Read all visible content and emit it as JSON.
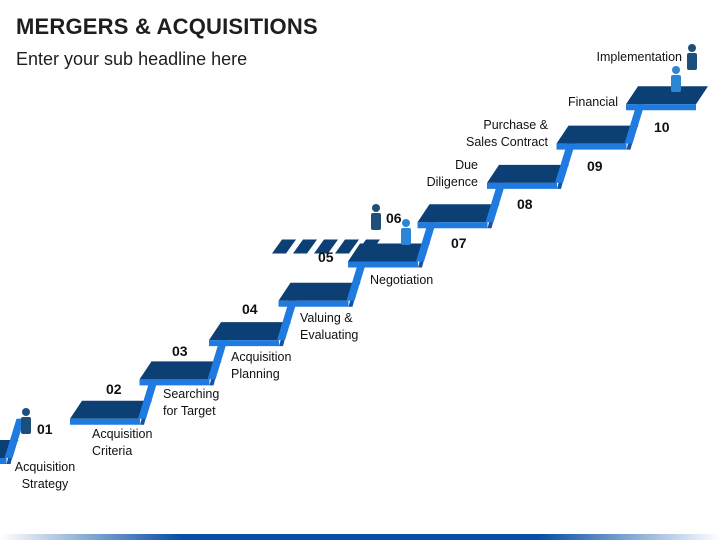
{
  "slide": {
    "title": "MERGERS & ACQUISITIONS",
    "subtitle": "Enter your sub headline here"
  },
  "colors": {
    "step_light": "#1f7be0",
    "step_dark": "#0c3f73",
    "step_riser": "#1552a3",
    "person": "#1e4f7c",
    "person_light": "#2b86d6",
    "footer": "#0a4ea8"
  },
  "steps": [
    {
      "number": "01",
      "label": "Acquisition\nStrategy"
    },
    {
      "number": "02",
      "label": "Acquisition\nCriteria"
    },
    {
      "number": "03",
      "label": "Searching\nfor Target"
    },
    {
      "number": "04",
      "label": "Acquisition\nPlanning"
    },
    {
      "number": "05",
      "label": "Valuing &\nEvaluating"
    },
    {
      "number": "06",
      "label": "Negotiation"
    },
    {
      "number": "07",
      "label": "Due\nDiligence"
    },
    {
      "number": "08",
      "label": "Purchase &\nSales Contract"
    },
    {
      "number": "09",
      "label": "Financial"
    },
    {
      "number": "10",
      "label": "Implementation"
    }
  ],
  "icons": [
    "person-icon",
    "person-icon",
    "person-icon",
    "person-icon"
  ]
}
